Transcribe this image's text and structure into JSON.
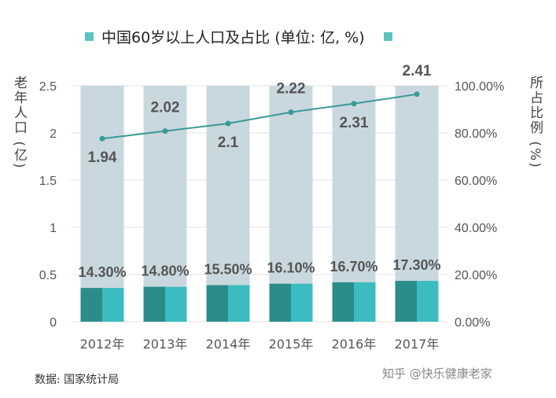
{
  "legend": {
    "title": "中国60岁以上人口及占比 (单位: 亿, %)"
  },
  "source": "数据: 国家统计局",
  "watermark": "知乎 @快乐健康老家",
  "chart_data": {
    "type": "bar",
    "title": "中国60岁以上人口及占比 (单位: 亿, %)",
    "categories": [
      "2012年",
      "2013年",
      "2014年",
      "2015年",
      "2016年",
      "2017年"
    ],
    "ylabel_left": "老年人口 (亿)",
    "ylabel_right": "所占比例 (%)",
    "yticks_left": [
      "0",
      "0.5",
      "1",
      "1.5",
      "2",
      "2.5"
    ],
    "yticks_right": [
      "0.00%",
      "20.00%",
      "40.00%",
      "60.00%",
      "80.00%",
      "100.00%"
    ],
    "ylim_left": [
      0,
      2.5
    ],
    "ylim_right": [
      0,
      100
    ],
    "bar_total": 2.5,
    "series": [
      {
        "kind": "bar",
        "axis": "right",
        "values": [
          14.3,
          14.8,
          15.5,
          16.1,
          16.7,
          17.3
        ],
        "labels": [
          "14.30%",
          "14.80%",
          "15.50%",
          "16.10%",
          "16.70%",
          "17.30%"
        ]
      },
      {
        "kind": "line",
        "axis": "left",
        "values": [
          1.94,
          2.02,
          2.1,
          2.22,
          2.31,
          2.41
        ],
        "labels": [
          "1.94",
          "2.02",
          "2.1",
          "2.22",
          "2.31",
          "2.41"
        ]
      }
    ],
    "grid": true,
    "colors": {
      "background_bar": "#c9d8de",
      "bar_dark": "#2a8d8a",
      "bar_light": "#3bbcc0",
      "line": "#3a9a97",
      "legend_swatch": "#5cc3bd"
    }
  }
}
